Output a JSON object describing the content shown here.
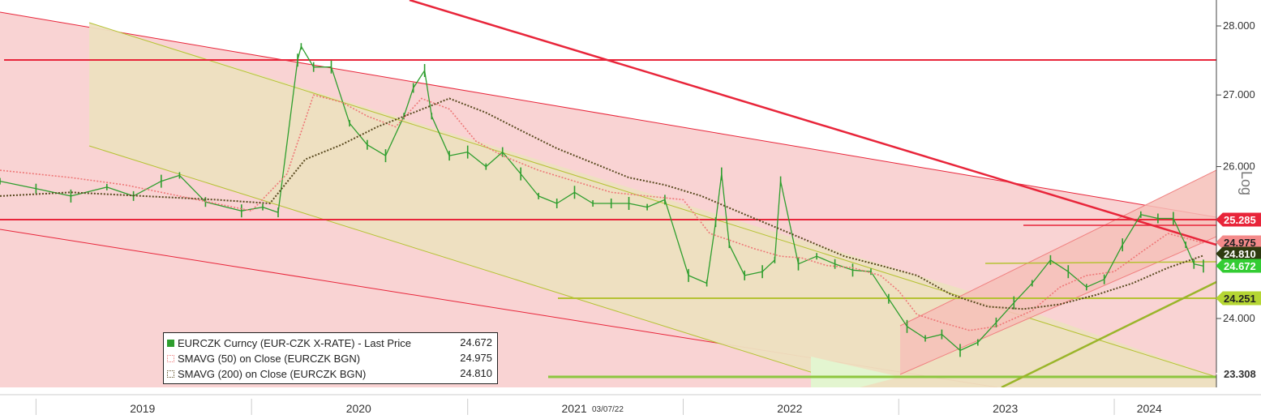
{
  "chart_data": {
    "type": "line",
    "title": "",
    "xlabel": "",
    "ylabel": "",
    "y_scale": "log",
    "y_scale_label": "Log",
    "ylim": [
      23.2,
      28.3
    ],
    "y_ticks": [
      "24.000",
      "26.000",
      "27.000",
      "28.000"
    ],
    "x_ticks": [
      "2019",
      "2020",
      "2021",
      "2022",
      "2023",
      "2024"
    ],
    "date_marker": "03/07/22",
    "grid": false,
    "legend": "bottom-left",
    "series": [
      {
        "name": "EURCZK Curncy (EUR-CZK X-RATE) - Last Price",
        "legend_value": "24.672",
        "color": "#2e9e2e",
        "style": "ohlc-bars",
        "x": [
          "2018-11-01",
          "2019-01-01",
          "2019-03-01",
          "2019-05-01",
          "2019-06-15",
          "2019-08-01",
          "2019-09-01",
          "2019-10-15",
          "2019-12-15",
          "2020-01-20",
          "2020-02-15",
          "2020-03-19",
          "2020-03-25",
          "2020-04-15",
          "2020-05-15",
          "2020-06-15",
          "2020-07-15",
          "2020-08-15",
          "2020-09-15",
          "2020-10-01",
          "2020-10-20",
          "2020-11-01",
          "2020-12-01",
          "2021-01-01",
          "2021-02-01",
          "2021-03-01",
          "2021-04-01",
          "2021-05-01",
          "2021-06-01",
          "2021-07-01",
          "2021-08-01",
          "2021-09-01",
          "2021-10-01",
          "2021-11-01",
          "2021-12-01",
          "2022-01-10",
          "2022-02-10",
          "2022-02-25",
          "2022-03-07",
          "2022-03-20",
          "2022-04-15",
          "2022-05-15",
          "2022-06-05",
          "2022-06-15",
          "2022-07-15",
          "2022-08-15",
          "2022-09-15",
          "2022-10-15",
          "2022-11-15",
          "2022-12-15",
          "2023-01-15",
          "2023-02-15",
          "2023-03-15",
          "2023-04-15",
          "2023-05-15",
          "2023-06-15",
          "2023-07-15",
          "2023-08-15",
          "2023-09-15",
          "2023-10-15",
          "2023-11-15",
          "2023-12-15",
          "2024-01-15",
          "2024-02-15",
          "2024-03-15",
          "2024-04-10",
          "2024-05-01",
          "2024-05-15",
          "2024-05-31"
        ],
        "values": [
          25.8,
          25.7,
          25.6,
          25.72,
          25.6,
          25.8,
          25.88,
          25.52,
          25.4,
          25.45,
          25.38,
          27.5,
          27.7,
          27.4,
          27.4,
          26.6,
          26.3,
          26.15,
          26.7,
          27.1,
          27.35,
          26.7,
          26.15,
          26.2,
          26.0,
          26.2,
          25.9,
          25.6,
          25.5,
          25.65,
          25.5,
          25.5,
          25.5,
          25.45,
          25.55,
          24.55,
          24.45,
          25.25,
          25.9,
          24.95,
          24.55,
          24.6,
          24.75,
          25.8,
          24.7,
          24.8,
          24.7,
          24.62,
          24.6,
          24.25,
          23.9,
          23.75,
          23.8,
          23.6,
          23.7,
          23.95,
          24.2,
          24.45,
          24.75,
          24.6,
          24.4,
          24.5,
          24.95,
          25.35,
          25.3,
          25.3,
          24.95,
          24.7,
          24.672
        ]
      },
      {
        "name": "SMAVG (50) on Close (EURCZK BGN)",
        "legend_value": "24.975",
        "color": "#ee7777",
        "style": "dotted",
        "x": [
          "2018-11-01",
          "2019-03-01",
          "2019-06-01",
          "2019-10-01",
          "2020-01-01",
          "2020-03-01",
          "2020-04-15",
          "2020-06-01",
          "2020-07-15",
          "2020-09-01",
          "2020-10-15",
          "2020-12-01",
          "2021-01-15",
          "2021-03-01",
          "2021-05-01",
          "2021-07-01",
          "2021-09-01",
          "2021-11-01",
          "2022-01-01",
          "2022-02-15",
          "2022-03-25",
          "2022-05-01",
          "2022-06-15",
          "2022-07-20",
          "2022-09-01",
          "2022-10-15",
          "2022-12-01",
          "2023-01-01",
          "2023-02-01",
          "2023-03-15",
          "2023-05-01",
          "2023-06-15",
          "2023-08-15",
          "2023-10-01",
          "2023-11-15",
          "2024-01-01",
          "2024-02-15",
          "2024-04-01",
          "2024-05-31"
        ],
        "values": [
          25.95,
          25.85,
          25.75,
          25.55,
          25.4,
          25.9,
          27.0,
          26.9,
          26.7,
          26.55,
          26.95,
          26.8,
          26.35,
          26.15,
          25.95,
          25.8,
          25.65,
          25.6,
          25.55,
          25.1,
          25.0,
          24.9,
          24.8,
          24.78,
          24.68,
          24.65,
          24.55,
          24.35,
          24.05,
          23.95,
          23.85,
          23.9,
          24.1,
          24.4,
          24.55,
          24.6,
          24.85,
          25.1,
          24.975
        ]
      },
      {
        "name": "SMAVG (200) on Close (EURCZK BGN)",
        "legend_value": "24.810",
        "color": "#5a4a20",
        "style": "dotted",
        "x": [
          "2018-11-01",
          "2019-03-01",
          "2019-07-01",
          "2019-11-01",
          "2020-02-01",
          "2020-04-01",
          "2020-06-01",
          "2020-08-01",
          "2020-10-01",
          "2020-12-01",
          "2021-02-01",
          "2021-04-01",
          "2021-06-01",
          "2021-08-01",
          "2021-10-01",
          "2021-12-01",
          "2022-02-01",
          "2022-04-01",
          "2022-06-01",
          "2022-08-01",
          "2022-10-01",
          "2022-12-01",
          "2023-02-01",
          "2023-04-01",
          "2023-06-01",
          "2023-08-01",
          "2023-10-01",
          "2023-12-01",
          "2024-02-01",
          "2024-04-01",
          "2024-05-31"
        ],
        "values": [
          25.6,
          25.65,
          25.6,
          25.55,
          25.5,
          26.1,
          26.3,
          26.55,
          26.75,
          26.95,
          26.75,
          26.5,
          26.25,
          26.05,
          25.85,
          25.75,
          25.6,
          25.4,
          25.2,
          25.0,
          24.8,
          24.68,
          24.55,
          24.3,
          24.15,
          24.12,
          24.18,
          24.3,
          24.45,
          24.65,
          24.81
        ]
      }
    ],
    "price_tags": [
      {
        "label": "25.285",
        "value": 25.285,
        "bg": "#e8253a",
        "fg": "#ffffff"
      },
      {
        "label": "24.975",
        "value": 24.975,
        "bg": "#f48a8a",
        "fg": "#222222"
      },
      {
        "label": "24.810",
        "value": 24.81,
        "bg": "#2e3a10",
        "fg": "#ffffff"
      },
      {
        "label": "24.672",
        "value": 24.672,
        "bg": "#33cc33",
        "fg": "#ffffff"
      },
      {
        "label": "24.251",
        "value": 24.251,
        "bg": "#b5d633",
        "fg": "#222222"
      },
      {
        "label": "23.308",
        "value": 23.308,
        "bg": "#ffffff",
        "fg": "#333333"
      }
    ]
  }
}
